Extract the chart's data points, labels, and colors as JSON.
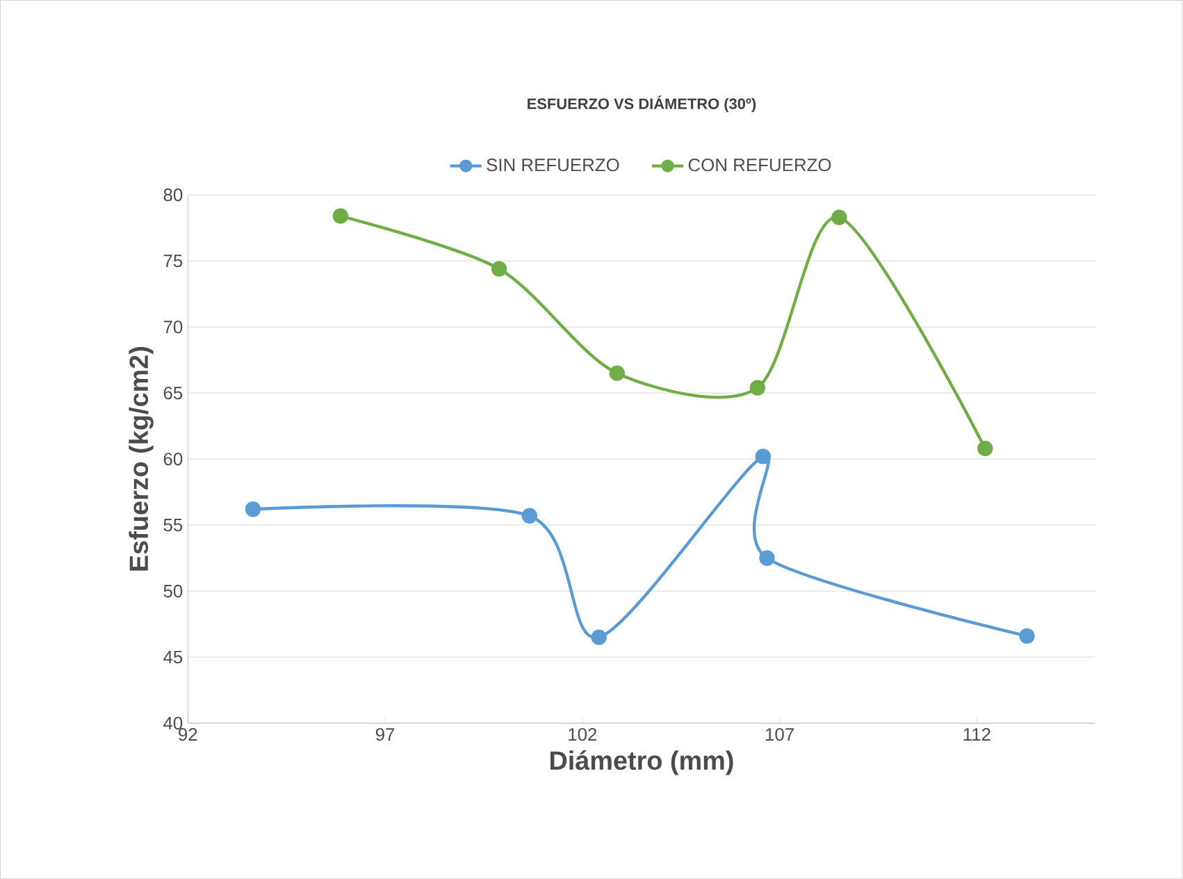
{
  "chart_data": {
    "type": "line",
    "title": "ESFUERZO VS DIÁMETRO (30º)",
    "xlabel": "Diámetro (mm)",
    "ylabel": "Esfuerzo (kg/cm2)",
    "series": [
      {
        "name": "SIN REFUERZO",
        "color": "#5b9bd5",
        "x": [
          93.65,
          100.66,
          102.42,
          106.58,
          106.68,
          113.27
        ],
        "values": [
          56.2,
          55.7,
          46.5,
          60.2,
          52.5,
          46.6
        ]
      },
      {
        "name": "CON REFUERZO",
        "color": "#70ad47",
        "x": [
          95.87,
          99.89,
          102.88,
          106.44,
          108.51,
          112.21
        ],
        "values": [
          78.4,
          74.4,
          66.5,
          65.4,
          78.3,
          60.8
        ]
      }
    ],
    "xlim": [
      92,
      115
    ],
    "xticks": [
      92,
      97,
      102,
      107,
      112
    ],
    "ylim": [
      40,
      80
    ],
    "yticks": [
      40,
      45,
      50,
      55,
      60,
      65,
      70,
      75,
      80
    ],
    "grid": "y",
    "legend": "top",
    "marker": "circle",
    "line_style": "solid"
  }
}
